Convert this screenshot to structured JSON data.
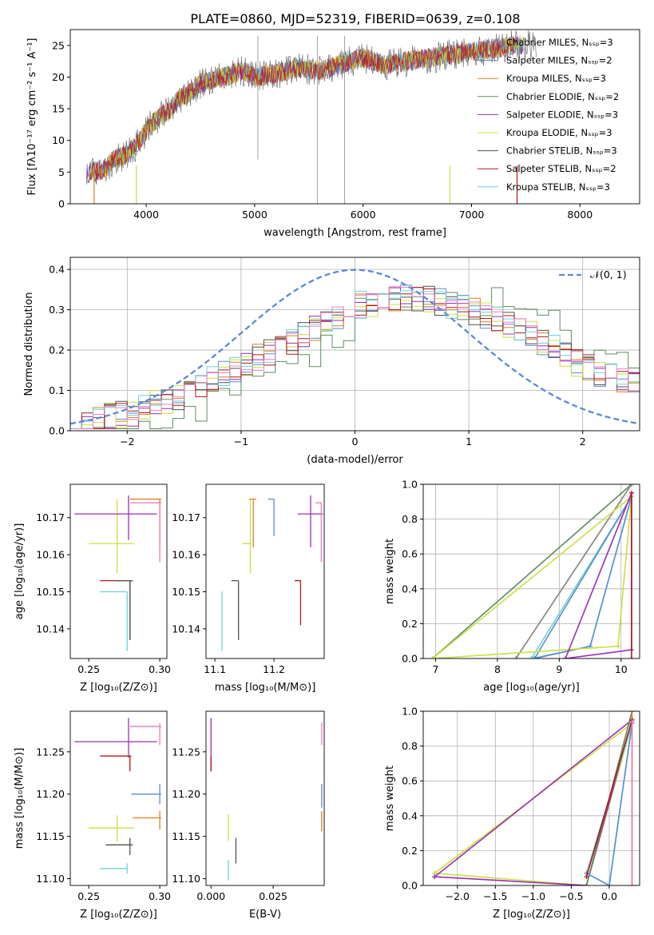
{
  "figure_title": "PLATE=0860, MJD=52319, FIBERID=0639, z=0.108",
  "chart_data": [
    {
      "id": "spectrum",
      "type": "line",
      "xlabel": "wavelength [Angstrom, rest frame]",
      "ylabel": "Flux [fλ10⁻¹⁷ erg cm⁻² s⁻¹ A⁻¹]",
      "xlim": [
        3300,
        8550
      ],
      "ylim": [
        0,
        27.5
      ],
      "xticks": [
        4000,
        5000,
        6000,
        7000,
        8000
      ],
      "yticks": [
        0,
        5,
        10,
        15,
        20,
        25
      ],
      "grid": false,
      "legend_position": "right",
      "spectrum_envelope": {
        "x": [
          3450,
          3550,
          3650,
          3700,
          3800,
          3900,
          4000,
          4100,
          4200,
          4300,
          4400,
          4500,
          4600,
          4700,
          4800,
          4900,
          5000,
          5200,
          5400,
          5600,
          5800,
          6000,
          6200,
          6400,
          6600,
          6800,
          7000,
          7200,
          7400
        ],
        "y": [
          5.5,
          5.0,
          6.0,
          7.0,
          7.5,
          9.0,
          11.5,
          13.5,
          14.5,
          16.5,
          17.5,
          19.0,
          19.5,
          20.0,
          20.5,
          21.0,
          20.0,
          20.5,
          21.5,
          21.0,
          22.0,
          23.0,
          22.0,
          22.5,
          23.0,
          23.5,
          24.0,
          24.5,
          25.0
        ]
      },
      "series": [
        {
          "name": "Chabrier MILES, N_SSP=3",
          "color": "#8c8c8c"
        },
        {
          "name": "Salpeter MILES, N_SSP=2",
          "color": "#5b8ad6"
        },
        {
          "name": "Kroupa MILES, N_SSP=3",
          "color": "#d88020"
        },
        {
          "name": "Chabrier ELODIE, N_SSP=2",
          "color": "#5e8a60"
        },
        {
          "name": "Salpeter ELODIE, N_SSP=3",
          "color": "#9a2fb0"
        },
        {
          "name": "Kroupa ELODIE, N_SSP=3",
          "color": "#c9e040"
        },
        {
          "name": "Chabrier STELIB, N_SSP=3",
          "color": "#505050"
        },
        {
          "name": "Salpeter STELIB, N_SSP=2",
          "color": "#b01818"
        },
        {
          "name": "Kroupa STELIB, N_SSP=3",
          "color": "#6ed0d8"
        }
      ]
    },
    {
      "id": "residuals",
      "type": "line",
      "xlabel": "(data-model)/error",
      "ylabel": "Normed distribution",
      "xlim": [
        -2.5,
        2.5
      ],
      "ylim": [
        0,
        0.43
      ],
      "xticks": [
        -2,
        -1,
        0,
        1,
        2
      ],
      "yticks": [
        0.0,
        0.1,
        0.2,
        0.3,
        0.4
      ],
      "grid": true,
      "legend_position": "top-right",
      "legend_label": "𝒩(0, 1)",
      "normal_color": "#5b8ad6",
      "hist_envelope": {
        "x": [
          -2.5,
          -2.0,
          -1.5,
          -1.0,
          -0.5,
          0.0,
          0.25,
          0.5,
          0.75,
          1.0,
          1.5,
          2.0,
          2.5
        ],
        "y": [
          0.02,
          0.04,
          0.09,
          0.16,
          0.23,
          0.31,
          0.32,
          0.33,
          0.32,
          0.3,
          0.25,
          0.16,
          0.11
        ]
      }
    },
    {
      "id": "age_vs_Z",
      "type": "scatter",
      "xlabel": "Z [log₁₀(Z/Z⊙)]",
      "ylabel": "age  [log₁₀(age/yr)]",
      "xlim": [
        0.237,
        0.305
      ],
      "ylim": [
        10.132,
        10.179
      ],
      "xticks": [
        0.25,
        0.3
      ],
      "xticklabels": [
        "0.25",
        "0.30"
      ],
      "yticks": [
        10.14,
        10.15,
        10.16,
        10.17
      ],
      "grid": false,
      "points": [
        {
          "x": 0.279,
          "y": 10.153,
          "xerr": [
            0.258,
            0.281
          ],
          "yerr": [
            10.137,
            10.153
          ],
          "color": "#b01818"
        },
        {
          "x": 0.279,
          "y": 10.153,
          "xerr": [
            0.269,
            0.281
          ],
          "yerr": [
            10.137,
            10.153
          ],
          "color": "#505050"
        },
        {
          "x": 0.277,
          "y": 10.15,
          "xerr": [
            0.258,
            0.277
          ],
          "yerr": [
            10.134,
            10.15
          ],
          "color": "#6ed0d8"
        },
        {
          "x": 0.27,
          "y": 10.163,
          "xerr": [
            0.25,
            0.282
          ],
          "yerr": [
            10.155,
            10.175
          ],
          "color": "#c9e040"
        },
        {
          "x": 0.278,
          "y": 10.171,
          "xerr": [
            0.24,
            0.298
          ],
          "yerr": [
            10.164,
            10.176
          ],
          "color": "#9a2fb0"
        },
        {
          "x": 0.3,
          "y": 10.175,
          "xerr": [
            0.279,
            0.301
          ],
          "yerr": [
            10.162,
            10.175
          ],
          "color": "#d88020"
        },
        {
          "x": 0.3,
          "y": 10.174,
          "xerr": [
            0.279,
            0.301
          ],
          "yerr": [
            10.158,
            10.174
          ],
          "color": "#e87fc0"
        }
      ]
    },
    {
      "id": "age_vs_mass",
      "type": "scatter",
      "xlabel": "mass [log₁₀(M/M⊙)]",
      "ylabel": "",
      "xlim": [
        11.085,
        11.285
      ],
      "ylim": [
        10.132,
        10.179
      ],
      "xticks": [
        11.1,
        11.2
      ],
      "xticklabels": [
        "11.1",
        "11.2"
      ],
      "yticks": [
        10.14,
        10.15,
        10.16,
        10.17
      ],
      "grid": false,
      "points": [
        {
          "x": 11.245,
          "y": 10.153,
          "xerr": [
            11.235,
            11.246
          ],
          "yerr": [
            10.141,
            10.153
          ],
          "color": "#b01818"
        },
        {
          "x": 11.14,
          "y": 10.153,
          "xerr": [
            11.128,
            11.14
          ],
          "yerr": [
            10.137,
            10.153
          ],
          "color": "#505050"
        },
        {
          "x": 11.112,
          "y": 10.15,
          "xerr": [
            11.112,
            11.113
          ],
          "yerr": [
            10.134,
            10.15
          ],
          "color": "#6ed0d8"
        },
        {
          "x": 11.16,
          "y": 10.163,
          "xerr": [
            11.146,
            11.16
          ],
          "yerr": [
            10.155,
            10.175
          ],
          "color": "#c9e040"
        },
        {
          "x": 11.165,
          "y": 10.175,
          "xerr": [
            11.158,
            11.17
          ],
          "yerr": [
            10.162,
            10.175
          ],
          "color": "#d88020"
        },
        {
          "x": 11.2,
          "y": 10.175,
          "xerr": [
            11.19,
            11.2
          ],
          "yerr": [
            10.165,
            10.175
          ],
          "color": "#5b8ad6"
        },
        {
          "x": 11.262,
          "y": 10.171,
          "xerr": [
            11.24,
            11.283
          ],
          "yerr": [
            10.162,
            10.176
          ],
          "color": "#9a2fb0"
        },
        {
          "x": 11.28,
          "y": 10.174,
          "xerr": [
            11.27,
            11.281
          ],
          "yerr": [
            10.158,
            10.174
          ],
          "color": "#e87fc0"
        }
      ]
    },
    {
      "id": "weight_vs_age",
      "type": "line",
      "xlabel": "age  [log₁₀(age/yr)]",
      "ylabel": "mass weight",
      "xlim": [
        6.8,
        10.3
      ],
      "ylim": [
        0,
        1.0
      ],
      "xticks": [
        7,
        8,
        9,
        10
      ],
      "yticks": [
        0.0,
        0.2,
        0.4,
        0.6,
        0.8,
        1.0
      ],
      "grid": true,
      "series": [
        {
          "color": "#5e8a60",
          "x": [
            6.95,
            10.17
          ],
          "y": [
            0.0,
            1.0
          ]
        },
        {
          "color": "#d88020",
          "x": [
            8.3,
            10.17,
            8.3
          ],
          "y": [
            0.0,
            1.0,
            0.0
          ]
        },
        {
          "color": "#8c8c8c",
          "x": [
            8.3,
            10.17
          ],
          "y": [
            0.0,
            1.0
          ]
        },
        {
          "color": "#6ed0d8",
          "x": [
            8.55,
            9.5,
            10.17,
            8.55
          ],
          "y": [
            0.0,
            0.07,
            0.93,
            0.0
          ]
        },
        {
          "color": "#5b8ad6",
          "x": [
            8.6,
            9.5,
            10.17,
            8.6
          ],
          "y": [
            0.0,
            0.07,
            0.93,
            0.0
          ]
        },
        {
          "color": "#c9e040",
          "x": [
            6.95,
            9.95,
            10.17,
            6.95
          ],
          "y": [
            0.0,
            0.07,
            0.93,
            0.0
          ]
        },
        {
          "color": "#9a2fb0",
          "x": [
            9.1,
            10.17,
            10.17,
            9.1
          ],
          "y": [
            0.0,
            0.05,
            0.95,
            0.0
          ]
        },
        {
          "color": "#b01818",
          "x": [
            10.17,
            10.17
          ],
          "y": [
            0.0,
            0.95
          ]
        }
      ]
    },
    {
      "id": "mass_vs_Z",
      "type": "scatter",
      "xlabel": "Z [log₁₀(Z/Z⊙)]",
      "ylabel": "mass [log₁₀(M/M⊙)]",
      "xlim": [
        0.237,
        0.305
      ],
      "ylim": [
        11.092,
        11.298
      ],
      "xticks": [
        0.25,
        0.3
      ],
      "xticklabels": [
        "0.25",
        "0.30"
      ],
      "yticks": [
        11.1,
        11.15,
        11.2,
        11.25
      ],
      "grid": false,
      "points": [
        {
          "x": 0.278,
          "y": 11.262,
          "xerr": [
            0.24,
            0.298
          ],
          "yerr": [
            11.243,
            11.29
          ],
          "color": "#9a2fb0"
        },
        {
          "x": 0.279,
          "y": 11.245,
          "xerr": [
            0.258,
            0.28
          ],
          "yerr": [
            11.227,
            11.245
          ],
          "color": "#b01818"
        },
        {
          "x": 0.3,
          "y": 11.28,
          "xerr": [
            0.279,
            0.301
          ],
          "yerr": [
            11.258,
            11.284
          ],
          "color": "#e87fc0"
        },
        {
          "x": 0.3,
          "y": 11.2,
          "xerr": [
            0.28,
            0.301
          ],
          "yerr": [
            11.188,
            11.212
          ],
          "color": "#5b8ad6"
        },
        {
          "x": 0.3,
          "y": 11.172,
          "xerr": [
            0.281,
            0.301
          ],
          "yerr": [
            11.158,
            11.18
          ],
          "color": "#d88020"
        },
        {
          "x": 0.27,
          "y": 11.16,
          "xerr": [
            0.25,
            0.282
          ],
          "yerr": [
            11.144,
            11.175
          ],
          "color": "#c9e040"
        },
        {
          "x": 0.279,
          "y": 11.14,
          "xerr": [
            0.262,
            0.281
          ],
          "yerr": [
            11.128,
            11.148
          ],
          "color": "#505050"
        },
        {
          "x": 0.277,
          "y": 11.112,
          "xerr": [
            0.258,
            0.277
          ],
          "yerr": [
            11.106,
            11.118
          ],
          "color": "#6ed0d8"
        }
      ]
    },
    {
      "id": "mass_vs_ebv",
      "type": "scatter",
      "xlabel": "E(B-V)",
      "ylabel": "",
      "xlim": [
        -0.002,
        0.0455
      ],
      "ylim": [
        11.092,
        11.298
      ],
      "xticks": [
        0.0,
        0.025
      ],
      "xticklabels": [
        "0.000",
        "0.025"
      ],
      "yticks": [
        11.1,
        11.15,
        11.2,
        11.25
      ],
      "grid": false,
      "points": [
        {
          "x": 0.0,
          "y": 11.262,
          "xerr": [
            0.0,
            0.0
          ],
          "yerr": [
            11.227,
            11.29
          ],
          "color": "#9a2fb0"
        },
        {
          "x": 0.0,
          "y": 11.245,
          "xerr": [
            0.0,
            0.0
          ],
          "yerr": [
            11.227,
            11.245
          ],
          "color": "#b01818"
        },
        {
          "x": 0.0445,
          "y": 11.272,
          "xerr": [
            0.0445,
            0.0445
          ],
          "yerr": [
            11.258,
            11.285
          ],
          "color": "#e87fc0"
        },
        {
          "x": 0.0445,
          "y": 11.198,
          "xerr": [
            0.0445,
            0.0445
          ],
          "yerr": [
            11.184,
            11.212
          ],
          "color": "#5b8ad6"
        },
        {
          "x": 0.0445,
          "y": 11.17,
          "xerr": [
            0.0445,
            0.0445
          ],
          "yerr": [
            11.156,
            11.18
          ],
          "color": "#d88020"
        },
        {
          "x": 0.007,
          "y": 11.16,
          "xerr": [
            0.007,
            0.007
          ],
          "yerr": [
            11.145,
            11.176
          ],
          "color": "#c9e040"
        },
        {
          "x": 0.01,
          "y": 11.132,
          "xerr": [
            0.01,
            0.01
          ],
          "yerr": [
            11.118,
            11.148
          ],
          "color": "#505050"
        },
        {
          "x": 0.007,
          "y": 11.112,
          "xerr": [
            0.007,
            0.007
          ],
          "yerr": [
            11.098,
            11.122
          ],
          "color": "#6ed0d8"
        }
      ]
    },
    {
      "id": "weight_vs_Z",
      "type": "line",
      "xlabel": "Z [log₁₀(Z/Z⊙)]",
      "ylabel": "mass weight",
      "xlim": [
        -2.45,
        0.4
      ],
      "ylim": [
        0,
        1.0
      ],
      "xticks": [
        -2.0,
        -1.5,
        -1.0,
        -0.5,
        0.0
      ],
      "xticklabels": [
        "−2.0",
        "−1.5",
        "−1.0",
        "−0.5",
        "0.0"
      ],
      "yticks": [
        0.0,
        0.2,
        0.4,
        0.6,
        0.8,
        1.0
      ],
      "grid": true,
      "series": [
        {
          "color": "#c9e040",
          "x": [
            -2.3,
            -0.3,
            0.3,
            -2.3
          ],
          "y": [
            0.07,
            0.0,
            0.93,
            0.07
          ]
        },
        {
          "color": "#9a2fb0",
          "x": [
            -2.3,
            -0.3,
            0.3,
            -2.3
          ],
          "y": [
            0.05,
            0.0,
            0.95,
            0.05
          ]
        },
        {
          "color": "#5e8a60",
          "x": [
            -0.3,
            0.3
          ],
          "y": [
            0.0,
            1.0
          ]
        },
        {
          "color": "#d88020",
          "x": [
            0.3,
            0.3
          ],
          "y": [
            0.0,
            1.0
          ]
        },
        {
          "color": "#6ed0d8",
          "x": [
            -0.3,
            0.0,
            0.3,
            -0.3
          ],
          "y": [
            0.07,
            0.0,
            0.93,
            0.07
          ]
        },
        {
          "color": "#5b8ad6",
          "x": [
            -0.3,
            0.0,
            0.3
          ],
          "y": [
            0.07,
            0.0,
            0.93
          ]
        },
        {
          "color": "#b01818",
          "x": [
            -0.3,
            0.3
          ],
          "y": [
            0.05,
            0.95
          ]
        },
        {
          "color": "#e87fc0",
          "x": [
            0.3,
            0.3
          ],
          "y": [
            0.0,
            0.94
          ]
        }
      ]
    }
  ]
}
